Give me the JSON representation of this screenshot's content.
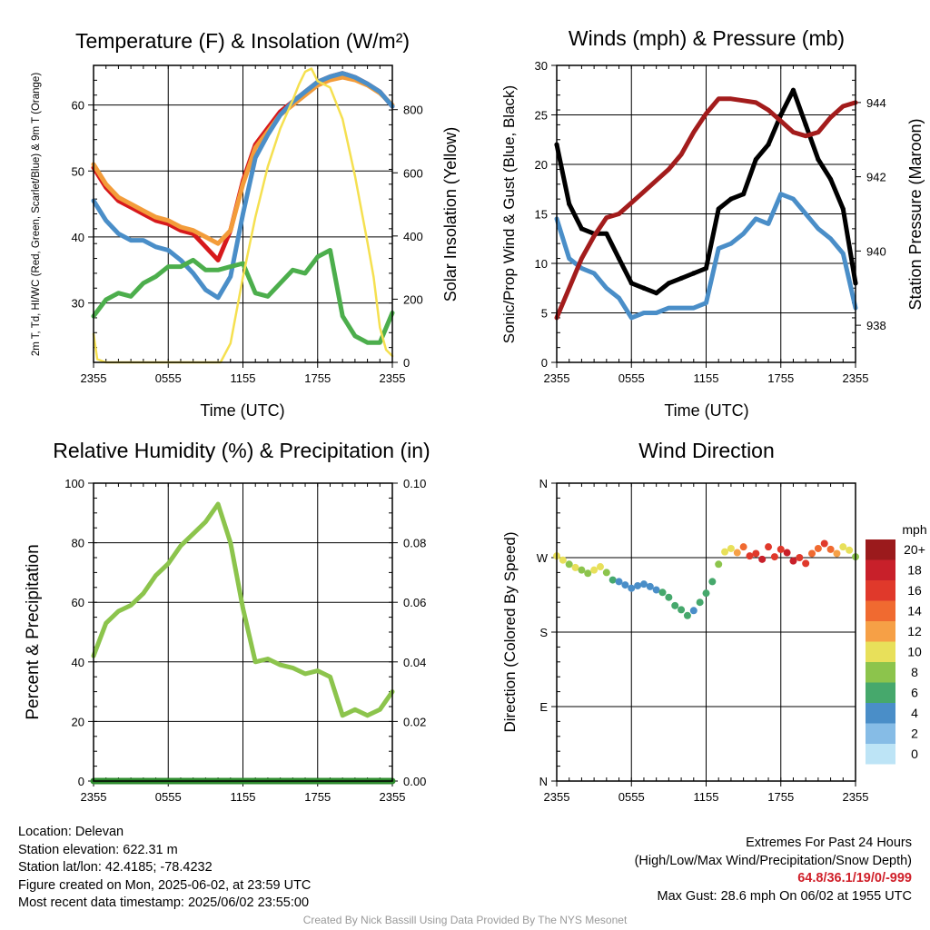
{
  "time_ticks": [
    "2355",
    "0555",
    "1155",
    "1755",
    "2355"
  ],
  "colorbar": {
    "unit": "mph",
    "labels": [
      "20+",
      "18",
      "16",
      "14",
      "12",
      "10",
      "8",
      "6",
      "4",
      "2",
      "0"
    ],
    "colors": [
      "#9b1a1c",
      "#c8202a",
      "#e0392b",
      "#f06a30",
      "#f6a046",
      "#e8e05a",
      "#8cc44c",
      "#46a86c",
      "#4a8ec8",
      "#86bce6",
      "#bde4f6"
    ]
  },
  "chart_data": [
    {
      "type": "line",
      "title": "Temperature (F) & Insolation (W/m²)",
      "xlabel": "Time (UTC)",
      "ylabel": "2m T, Td, HI/WC (Red, Green, Scarlet/Blue) & 9m T (Orange)",
      "ylabel2": "Solar Insolation (Yellow)",
      "xlim": [
        0,
        24
      ],
      "ylim": [
        21,
        66
      ],
      "ylim2": [
        0,
        940
      ],
      "yticks": [
        30,
        40,
        50,
        60
      ],
      "yticks2": [
        0,
        200,
        400,
        600,
        800
      ],
      "series": [
        {
          "color": "#d7191c",
          "axis": "left",
          "x": [
            0,
            1,
            2,
            3,
            4,
            5,
            6,
            7,
            8,
            9,
            10,
            11,
            12,
            13,
            14,
            15,
            16,
            17,
            18,
            19,
            20,
            21,
            22,
            23,
            24
          ],
          "y": [
            50.5,
            47.5,
            45.5,
            44.5,
            43.5,
            42.5,
            42.0,
            41.0,
            40.5,
            38.5,
            36.5,
            41.0,
            48.5,
            54.0,
            56.5,
            59.0,
            60.5,
            62.0,
            63.5,
            64.3,
            64.8,
            64.2,
            63.2,
            62.0,
            59.8
          ]
        },
        {
          "color": "#f39c3a",
          "axis": "left",
          "x": [
            0,
            1,
            2,
            3,
            4,
            5,
            6,
            7,
            8,
            9,
            10,
            11,
            12,
            13,
            14,
            15,
            16,
            17,
            18,
            19,
            20,
            21,
            22,
            23,
            24
          ],
          "y": [
            51.0,
            48.0,
            46.0,
            45.0,
            44.0,
            43.0,
            42.5,
            41.5,
            41.0,
            40.0,
            39.0,
            41.0,
            48.0,
            53.5,
            56.0,
            58.5,
            60.0,
            61.5,
            63.0,
            63.8,
            64.2,
            63.8,
            63.0,
            61.8,
            60.0
          ]
        },
        {
          "color": "#4a8ec8",
          "axis": "left",
          "x": [
            0,
            1,
            2,
            3,
            4,
            5,
            6,
            7,
            8,
            9,
            10,
            11,
            12,
            13,
            14,
            15,
            16,
            17,
            18,
            19,
            20,
            21,
            22,
            23,
            24
          ],
          "y": [
            45.5,
            42.5,
            40.5,
            39.5,
            39.5,
            38.5,
            38.0,
            36.5,
            34.5,
            32.0,
            30.8,
            34.0,
            43.5,
            52.0,
            55.5,
            58.5,
            60.5,
            62.0,
            63.5,
            64.3,
            64.8,
            64.2,
            63.2,
            62.0,
            59.8
          ]
        },
        {
          "color": "#4cae4c",
          "axis": "left",
          "x": [
            0,
            1,
            2,
            3,
            4,
            5,
            6,
            7,
            8,
            9,
            10,
            11,
            12,
            13,
            14,
            15,
            16,
            17,
            18,
            19,
            20,
            21,
            22,
            23,
            24
          ],
          "y": [
            28.0,
            30.5,
            31.5,
            31.0,
            33.0,
            34.0,
            35.5,
            35.5,
            36.5,
            35.0,
            35.0,
            35.5,
            36.0,
            31.5,
            31.0,
            33.0,
            35.0,
            34.5,
            37.0,
            38.0,
            28.0,
            25.0,
            24.0,
            24.0,
            28.5
          ]
        },
        {
          "color": "#f5e050",
          "axis": "right",
          "x": [
            0,
            0.3,
            1,
            4,
            8,
            9.5,
            10.2,
            11,
            12,
            13,
            14,
            15,
            16,
            16.5,
            17,
            17.5,
            18,
            19,
            20,
            21,
            22,
            22.5,
            23,
            23.5,
            24
          ],
          "y": [
            90,
            10,
            0,
            0,
            0,
            0,
            0,
            60,
            270,
            460,
            620,
            740,
            830,
            880,
            920,
            930,
            890,
            870,
            770,
            590,
            380,
            270,
            110,
            40,
            20
          ]
        }
      ]
    },
    {
      "type": "line",
      "title": "Winds (mph) & Pressure (mb)",
      "xlabel": "Time (UTC)",
      "ylabel": "Sonic/Prop Wind & Gust (Blue, Black)",
      "ylabel2": "Station Pressure (Maroon)",
      "xlim": [
        0,
        24
      ],
      "ylim": [
        0,
        30
      ],
      "ylim2": [
        937.0,
        945.0
      ],
      "yticks": [
        0,
        5,
        10,
        15,
        20,
        25,
        30
      ],
      "yticks2": [
        938,
        940,
        942,
        944
      ],
      "series": [
        {
          "color": "#4a8ec8",
          "axis": "left",
          "x": [
            0,
            1,
            2,
            3,
            4,
            5,
            6,
            7,
            8,
            9,
            10,
            11,
            12,
            13,
            14,
            15,
            16,
            17,
            18,
            19,
            20,
            21,
            22,
            23,
            24
          ],
          "y": [
            14.5,
            10.5,
            9.5,
            9.0,
            7.5,
            6.5,
            4.5,
            5.0,
            5.0,
            5.5,
            5.5,
            5.5,
            6.0,
            11.5,
            12.0,
            13.0,
            14.5,
            14.0,
            17.0,
            16.5,
            15.0,
            13.5,
            12.5,
            11.0,
            5.5
          ]
        },
        {
          "color": "#000000",
          "axis": "left",
          "x": [
            0,
            1,
            2,
            3,
            4,
            5,
            6,
            7,
            8,
            9,
            10,
            11,
            12,
            13,
            14,
            15,
            16,
            17,
            18,
            19,
            20,
            21,
            22,
            23,
            24
          ],
          "y": [
            22.0,
            16.0,
            13.5,
            13.0,
            13.0,
            10.5,
            8.0,
            7.5,
            7.0,
            8.0,
            8.5,
            9.0,
            9.5,
            15.5,
            16.5,
            17.0,
            20.5,
            22.0,
            25.0,
            27.5,
            24.0,
            20.5,
            18.5,
            15.5,
            8.0
          ]
        },
        {
          "color": "#a31c1c",
          "axis": "right",
          "x": [
            0,
            1,
            2,
            3,
            4,
            5,
            6,
            7,
            8,
            9,
            10,
            11,
            12,
            13,
            14,
            15,
            16,
            17,
            18,
            19,
            20,
            21,
            22,
            23,
            24
          ],
          "y": [
            938.2,
            939.0,
            939.8,
            940.4,
            940.9,
            941.0,
            941.3,
            941.6,
            941.9,
            942.2,
            942.6,
            943.2,
            943.7,
            944.1,
            944.1,
            944.05,
            944.0,
            943.8,
            943.5,
            943.2,
            943.1,
            943.2,
            943.6,
            943.9,
            944.0
          ]
        }
      ]
    },
    {
      "type": "line",
      "title": "Relative Humidity (%) & Precipitation (in)",
      "xlabel": "",
      "ylabel": "Percent & Precipitation",
      "xlim": [
        0,
        24
      ],
      "ylim": [
        0,
        100
      ],
      "ylim2": [
        0,
        0.1
      ],
      "yticks": [
        0,
        20,
        40,
        60,
        80,
        100
      ],
      "yticks2": [
        "0.00",
        "0.02",
        "0.04",
        "0.06",
        "0.08",
        "0.10"
      ],
      "series": [
        {
          "color": "#8cc44c",
          "axis": "left",
          "x": [
            0,
            1,
            2,
            3,
            4,
            5,
            6,
            7,
            8,
            9,
            10,
            11,
            12,
            13,
            14,
            15,
            16,
            17,
            18,
            19,
            20,
            21,
            22,
            23,
            24
          ],
          "y": [
            42,
            53,
            57,
            59,
            63,
            69,
            73,
            79,
            83,
            87,
            93,
            80,
            58,
            40,
            41,
            39,
            38,
            36,
            37,
            35,
            22,
            24,
            22,
            24,
            30
          ]
        },
        {
          "color": "#2e8b2e",
          "axis": "right",
          "x": [
            0,
            24
          ],
          "y": [
            0.0,
            0.0
          ]
        }
      ]
    },
    {
      "type": "scatter",
      "title": "Wind Direction",
      "xlabel": "",
      "ylabel": "Direction (Colored By Speed)",
      "xlim": [
        0,
        24
      ],
      "ylim": [
        0,
        360
      ],
      "yticks": [
        "N",
        "E",
        "S",
        "W",
        "N"
      ],
      "points": [
        {
          "x": 0,
          "y": 272,
          "s": 11
        },
        {
          "x": 0.5,
          "y": 267,
          "s": 10
        },
        {
          "x": 1,
          "y": 262,
          "s": 9
        },
        {
          "x": 1.5,
          "y": 258,
          "s": 10
        },
        {
          "x": 2,
          "y": 255,
          "s": 9
        },
        {
          "x": 2.5,
          "y": 251,
          "s": 9
        },
        {
          "x": 3,
          "y": 255,
          "s": 10
        },
        {
          "x": 3.5,
          "y": 259,
          "s": 10
        },
        {
          "x": 4,
          "y": 252,
          "s": 8
        },
        {
          "x": 4.5,
          "y": 243,
          "s": 6
        },
        {
          "x": 5,
          "y": 241,
          "s": 5
        },
        {
          "x": 5.5,
          "y": 237,
          "s": 5
        },
        {
          "x": 6,
          "y": 233,
          "s": 4
        },
        {
          "x": 6.5,
          "y": 236,
          "s": 4
        },
        {
          "x": 7,
          "y": 238,
          "s": 4
        },
        {
          "x": 7.5,
          "y": 235,
          "s": 5
        },
        {
          "x": 8,
          "y": 231,
          "s": 5
        },
        {
          "x": 8.5,
          "y": 228,
          "s": 6
        },
        {
          "x": 9,
          "y": 222,
          "s": 6
        },
        {
          "x": 9.5,
          "y": 212,
          "s": 6
        },
        {
          "x": 10,
          "y": 207,
          "s": 6
        },
        {
          "x": 10.5,
          "y": 200,
          "s": 6
        },
        {
          "x": 11,
          "y": 206,
          "s": 5
        },
        {
          "x": 11.5,
          "y": 216,
          "s": 6
        },
        {
          "x": 12,
          "y": 227,
          "s": 6
        },
        {
          "x": 12.5,
          "y": 241,
          "s": 6
        },
        {
          "x": 13,
          "y": 262,
          "s": 9
        },
        {
          "x": 13.5,
          "y": 277,
          "s": 10
        },
        {
          "x": 14,
          "y": 281,
          "s": 11
        },
        {
          "x": 14.5,
          "y": 276,
          "s": 12
        },
        {
          "x": 15,
          "y": 283,
          "s": 14
        },
        {
          "x": 15.5,
          "y": 272,
          "s": 16
        },
        {
          "x": 16,
          "y": 275,
          "s": 17
        },
        {
          "x": 16.5,
          "y": 268,
          "s": 18
        },
        {
          "x": 17,
          "y": 283,
          "s": 17
        },
        {
          "x": 17.5,
          "y": 271,
          "s": 16
        },
        {
          "x": 18,
          "y": 280,
          "s": 17
        },
        {
          "x": 18.5,
          "y": 276,
          "s": 18
        },
        {
          "x": 19,
          "y": 266,
          "s": 18
        },
        {
          "x": 19.5,
          "y": 270,
          "s": 17
        },
        {
          "x": 20,
          "y": 263,
          "s": 16
        },
        {
          "x": 20.5,
          "y": 275,
          "s": 14
        },
        {
          "x": 21,
          "y": 281,
          "s": 15
        },
        {
          "x": 21.5,
          "y": 287,
          "s": 17
        },
        {
          "x": 22,
          "y": 280,
          "s": 14
        },
        {
          "x": 22.5,
          "y": 275,
          "s": 12
        },
        {
          "x": 23,
          "y": 283,
          "s": 10
        },
        {
          "x": 23.5,
          "y": 279,
          "s": 10
        },
        {
          "x": 24,
          "y": 271,
          "s": 9
        }
      ]
    }
  ],
  "station": {
    "location": "Location: Delevan",
    "elevation": "Station elevation: 622.31 m",
    "latlon": "Station lat/lon: 42.4185; -78.4232",
    "created": "Figure created on Mon, 2025-06-02, at 23:59 UTC",
    "recent": "Most recent data timestamp: 2025/06/02 23:55:00"
  },
  "extremes": {
    "title": "Extremes For Past 24 Hours",
    "subtitle": "(High/Low/Max Wind/Precipitation/Snow Depth)",
    "values": "64.8/36.1/19/0/-999",
    "gust": "Max Gust: 28.6 mph On 06/02 at 1955 UTC"
  },
  "credit": "Created By Nick Bassill Using Data Provided By The NYS Mesonet"
}
